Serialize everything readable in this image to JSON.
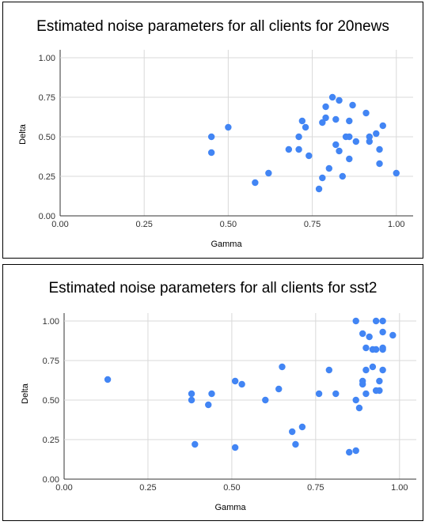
{
  "chart_data": [
    {
      "type": "scatter",
      "title": "Estimated noise parameters for all clients for 20news",
      "xlabel": "Gamma",
      "ylabel": "Delta",
      "xlim": [
        0,
        1.05
      ],
      "ylim": [
        0,
        1.05
      ],
      "xticks": [
        "0.00",
        "0.25",
        "0.50",
        "0.75",
        "1.00"
      ],
      "yticks": [
        "0.00",
        "0.25",
        "0.50",
        "0.75",
        "1.00"
      ],
      "grid": true,
      "legend": "none",
      "color": "#4285f4",
      "points": [
        {
          "x": 0.45,
          "y": 0.5
        },
        {
          "x": 0.45,
          "y": 0.4
        },
        {
          "x": 0.5,
          "y": 0.56
        },
        {
          "x": 0.58,
          "y": 0.21
        },
        {
          "x": 0.62,
          "y": 0.27
        },
        {
          "x": 0.68,
          "y": 0.42
        },
        {
          "x": 0.71,
          "y": 0.5
        },
        {
          "x": 0.71,
          "y": 0.42
        },
        {
          "x": 0.72,
          "y": 0.6
        },
        {
          "x": 0.73,
          "y": 0.56
        },
        {
          "x": 0.74,
          "y": 0.38
        },
        {
          "x": 0.77,
          "y": 0.17
        },
        {
          "x": 0.78,
          "y": 0.59
        },
        {
          "x": 0.78,
          "y": 0.24
        },
        {
          "x": 0.79,
          "y": 0.62
        },
        {
          "x": 0.79,
          "y": 0.69
        },
        {
          "x": 0.8,
          "y": 0.3
        },
        {
          "x": 0.81,
          "y": 0.75
        },
        {
          "x": 0.82,
          "y": 0.61
        },
        {
          "x": 0.82,
          "y": 0.45
        },
        {
          "x": 0.83,
          "y": 0.73
        },
        {
          "x": 0.83,
          "y": 0.41
        },
        {
          "x": 0.84,
          "y": 0.25
        },
        {
          "x": 0.85,
          "y": 0.5
        },
        {
          "x": 0.86,
          "y": 0.5
        },
        {
          "x": 0.86,
          "y": 0.6
        },
        {
          "x": 0.86,
          "y": 0.36
        },
        {
          "x": 0.87,
          "y": 0.7
        },
        {
          "x": 0.88,
          "y": 0.47
        },
        {
          "x": 0.91,
          "y": 0.65
        },
        {
          "x": 0.92,
          "y": 0.5
        },
        {
          "x": 0.92,
          "y": 0.47
        },
        {
          "x": 0.94,
          "y": 0.52
        },
        {
          "x": 0.95,
          "y": 0.42
        },
        {
          "x": 0.95,
          "y": 0.33
        },
        {
          "x": 0.96,
          "y": 0.57
        },
        {
          "x": 1.0,
          "y": 0.27
        }
      ]
    },
    {
      "type": "scatter",
      "title": "Estimated noise parameters for all clients for sst2",
      "xlabel": "Gamma",
      "ylabel": "Delta",
      "xlim": [
        0,
        1.05
      ],
      "ylim": [
        0,
        1.05
      ],
      "xticks": [
        "0.00",
        "0.25",
        "0.50",
        "0.75",
        "1.00"
      ],
      "yticks": [
        "0.00",
        "0.25",
        "0.50",
        "0.75",
        "1.00"
      ],
      "grid": true,
      "legend": "none",
      "color": "#4285f4",
      "points": [
        {
          "x": 0.13,
          "y": 0.63
        },
        {
          "x": 0.38,
          "y": 0.54
        },
        {
          "x": 0.38,
          "y": 0.5
        },
        {
          "x": 0.39,
          "y": 0.22
        },
        {
          "x": 0.43,
          "y": 0.47
        },
        {
          "x": 0.44,
          "y": 0.54
        },
        {
          "x": 0.51,
          "y": 0.62
        },
        {
          "x": 0.51,
          "y": 0.2
        },
        {
          "x": 0.53,
          "y": 0.6
        },
        {
          "x": 0.6,
          "y": 0.5
        },
        {
          "x": 0.64,
          "y": 0.57
        },
        {
          "x": 0.65,
          "y": 0.71
        },
        {
          "x": 0.68,
          "y": 0.3
        },
        {
          "x": 0.69,
          "y": 0.22
        },
        {
          "x": 0.71,
          "y": 0.33
        },
        {
          "x": 0.76,
          "y": 0.54
        },
        {
          "x": 0.79,
          "y": 0.69
        },
        {
          "x": 0.81,
          "y": 0.54
        },
        {
          "x": 0.85,
          "y": 0.17
        },
        {
          "x": 0.87,
          "y": 1.0
        },
        {
          "x": 0.87,
          "y": 0.5
        },
        {
          "x": 0.87,
          "y": 0.18
        },
        {
          "x": 0.88,
          "y": 0.45
        },
        {
          "x": 0.89,
          "y": 0.62
        },
        {
          "x": 0.89,
          "y": 0.6
        },
        {
          "x": 0.89,
          "y": 0.92
        },
        {
          "x": 0.9,
          "y": 0.69
        },
        {
          "x": 0.9,
          "y": 0.54
        },
        {
          "x": 0.9,
          "y": 0.83
        },
        {
          "x": 0.91,
          "y": 0.9
        },
        {
          "x": 0.92,
          "y": 0.82
        },
        {
          "x": 0.92,
          "y": 0.71
        },
        {
          "x": 0.93,
          "y": 1.0
        },
        {
          "x": 0.93,
          "y": 0.82
        },
        {
          "x": 0.93,
          "y": 0.56
        },
        {
          "x": 0.94,
          "y": 0.62
        },
        {
          "x": 0.94,
          "y": 0.56
        },
        {
          "x": 0.95,
          "y": 0.93
        },
        {
          "x": 0.95,
          "y": 1.0
        },
        {
          "x": 0.95,
          "y": 0.83
        },
        {
          "x": 0.95,
          "y": 0.82
        },
        {
          "x": 0.95,
          "y": 0.69
        },
        {
          "x": 0.98,
          "y": 0.91
        }
      ]
    }
  ]
}
